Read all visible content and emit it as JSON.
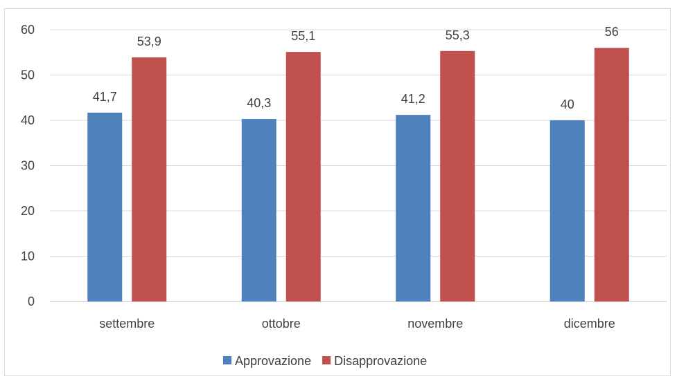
{
  "chart_data": {
    "type": "bar",
    "categories": [
      "settembre",
      "ottobre",
      "novembre",
      "dicembre"
    ],
    "series": [
      {
        "name": "Approvazione",
        "values": [
          41.7,
          40.3,
          41.2,
          40
        ],
        "labels": [
          "41,7",
          "40,3",
          "41,2",
          "40"
        ],
        "color": "#4f81bd"
      },
      {
        "name": "Disapprovazione",
        "values": [
          53.9,
          55.1,
          55.3,
          56
        ],
        "labels": [
          "53,9",
          "55,1",
          "55,3",
          "56"
        ],
        "color": "#c0504d"
      }
    ],
    "ylim": [
      0,
      60
    ],
    "yticks": [
      0,
      10,
      20,
      30,
      40,
      50,
      60
    ],
    "title": "",
    "xlabel": "",
    "ylabel": "",
    "grid": true,
    "legend_position": "bottom"
  }
}
